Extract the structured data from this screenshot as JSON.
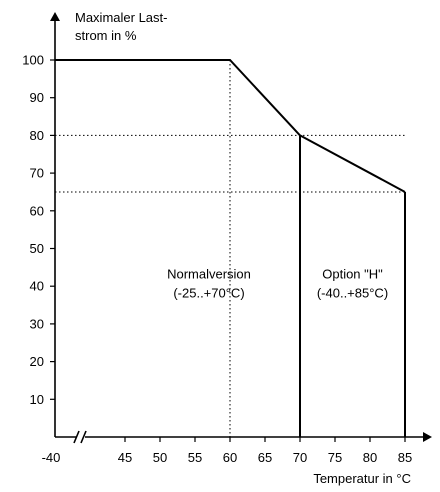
{
  "chart_data": {
    "type": "line",
    "ylabel": "Maximaler Last-\nstrom in %",
    "xlabel": "Temperatur in °C",
    "x_axis_start_label": "-40",
    "x_ticks": [
      45,
      50,
      55,
      60,
      65,
      70,
      75,
      80,
      85
    ],
    "y_ticks": [
      10,
      20,
      30,
      40,
      50,
      60,
      70,
      80,
      90,
      100
    ],
    "xlim": [
      40,
      85
    ],
    "ylim": [
      0,
      100
    ],
    "axis_break": "x",
    "series": [
      {
        "name": "Normalversion",
        "points": [
          [
            -40,
            100
          ],
          [
            60,
            100
          ],
          [
            70,
            80
          ]
        ],
        "drop_to_axis_at_x": 70
      },
      {
        "name": "Option \"H\"",
        "points": [
          [
            70,
            80
          ],
          [
            85,
            65
          ]
        ],
        "drop_to_axis_at_x": 85
      }
    ],
    "reference_lines": [
      {
        "orientation": "vertical",
        "x": 60
      },
      {
        "orientation": "horizontal",
        "y": 80
      },
      {
        "orientation": "horizontal",
        "y": 65
      }
    ],
    "annotations": [
      {
        "text": "Normalversion",
        "x": 57,
        "y": 42
      },
      {
        "text": "(-25..+70°C)",
        "x": 57,
        "y": 37
      },
      {
        "text": "Option \"H\"",
        "x": 77.5,
        "y": 42
      },
      {
        "text": "(-40..+85°C)",
        "x": 77.5,
        "y": 37
      }
    ]
  }
}
